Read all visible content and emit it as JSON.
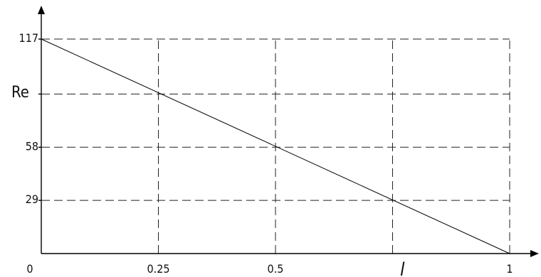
{
  "chart_data": {
    "type": "line",
    "title": "",
    "xlabel": "l",
    "ylabel": "Re",
    "x_ticks": [
      {
        "value": 0,
        "label": "0"
      },
      {
        "value": 0.25,
        "label": "0.25"
      },
      {
        "value": 0.5,
        "label": "0.5"
      },
      {
        "value": 1,
        "label": "1"
      }
    ],
    "y_ticks": [
      {
        "value": 29,
        "label": "29"
      },
      {
        "value": 58,
        "label": "58"
      },
      {
        "value": 117,
        "label": "117"
      }
    ],
    "grid_x": [
      0.25,
      0.5,
      0.75,
      1
    ],
    "grid_y": [
      29,
      58,
      87,
      117
    ],
    "xlim": [
      0,
      1
    ],
    "ylim": [
      0,
      117
    ],
    "grid": true,
    "series": [
      {
        "x": [
          0,
          1
        ],
        "y": [
          117,
          0
        ]
      }
    ]
  }
}
